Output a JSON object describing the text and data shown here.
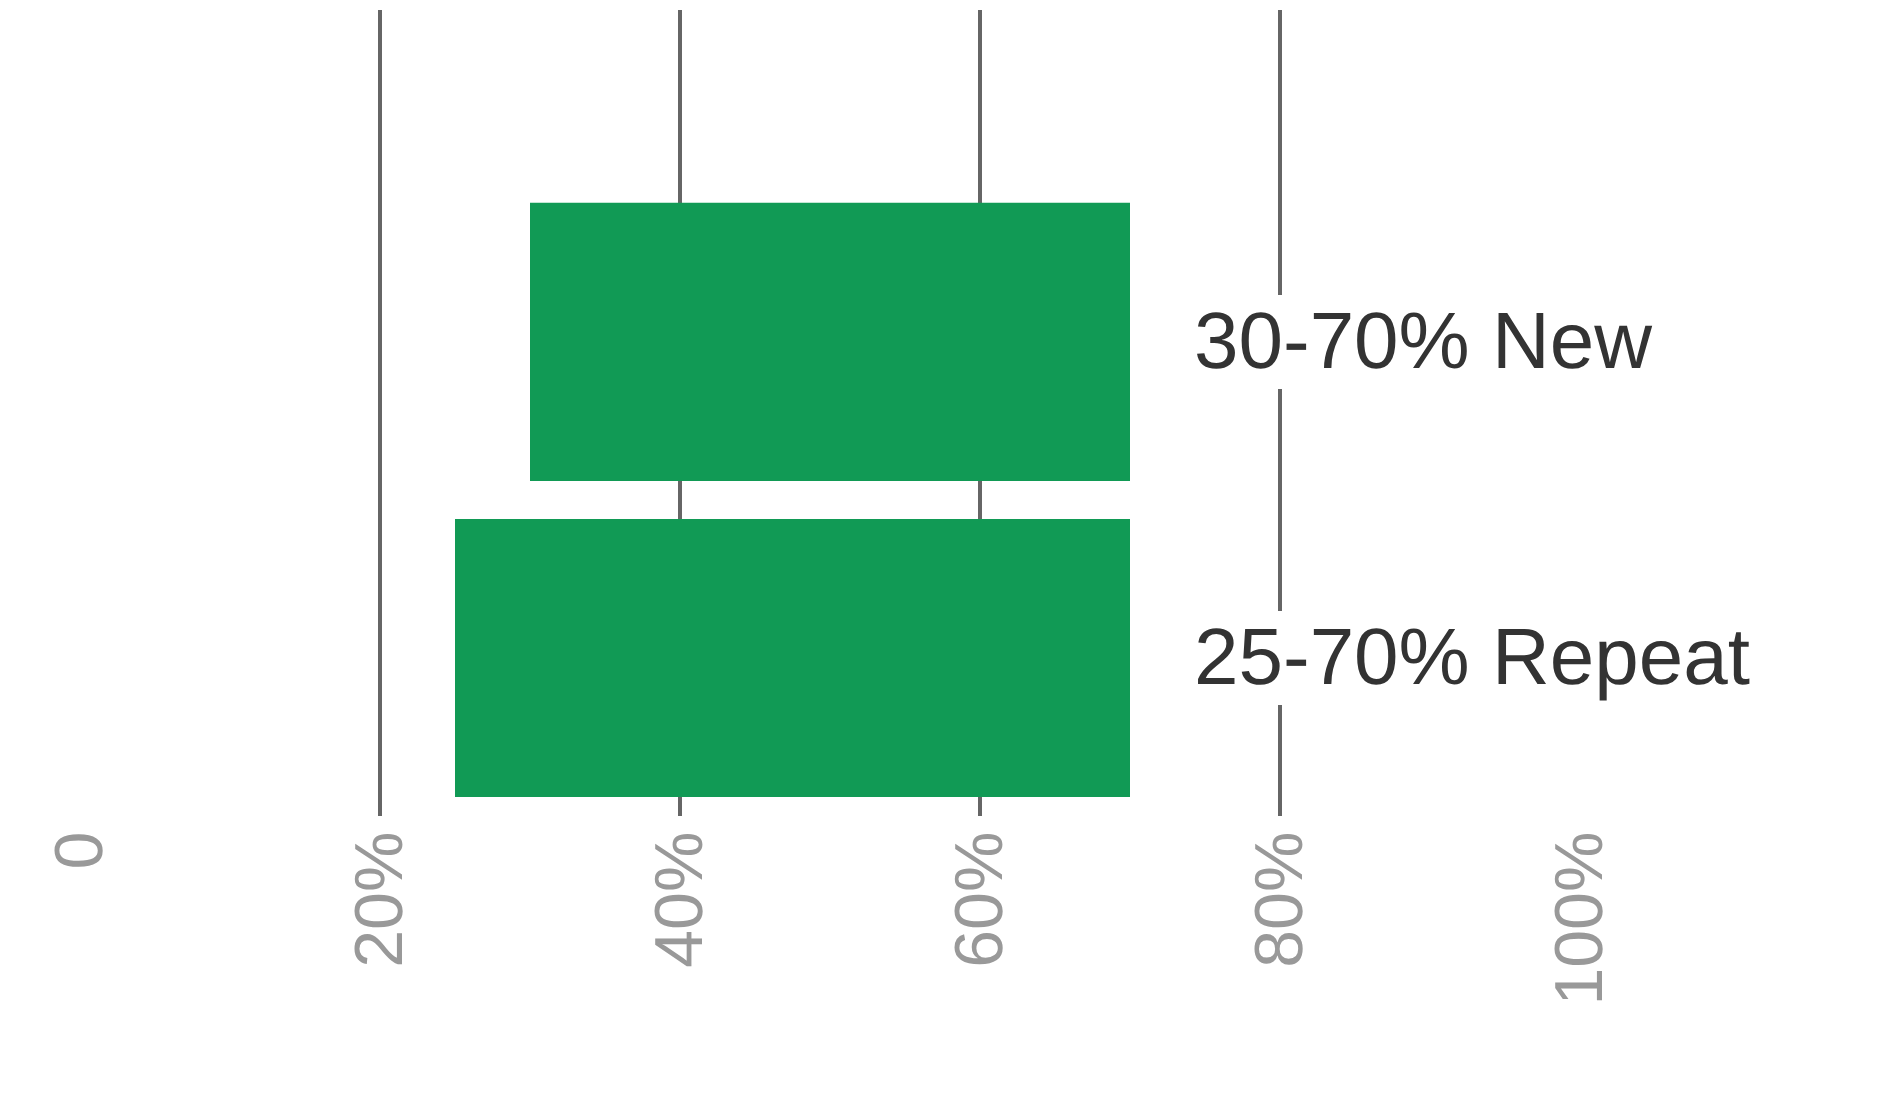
{
  "chart_data": {
    "type": "bar",
    "orientation": "horizontal",
    "categories": [
      null,
      null
    ],
    "values": [
      40,
      45
    ],
    "base": [
      30,
      25
    ],
    "color": "#119a55",
    "annotations": [
      "30-70% New",
      "25-70% Repeat"
    ],
    "xlim": [
      0,
      100
    ],
    "xticks": [
      0,
      {
        "value": 20,
        "label": "20%"
      },
      {
        "value": 40,
        "label": "40%"
      },
      {
        "value": 60,
        "label": "60%"
      },
      {
        "value": 80,
        "label": "80%"
      },
      {
        "value": 100,
        "label": "100%"
      }
    ],
    "grid": "x"
  }
}
